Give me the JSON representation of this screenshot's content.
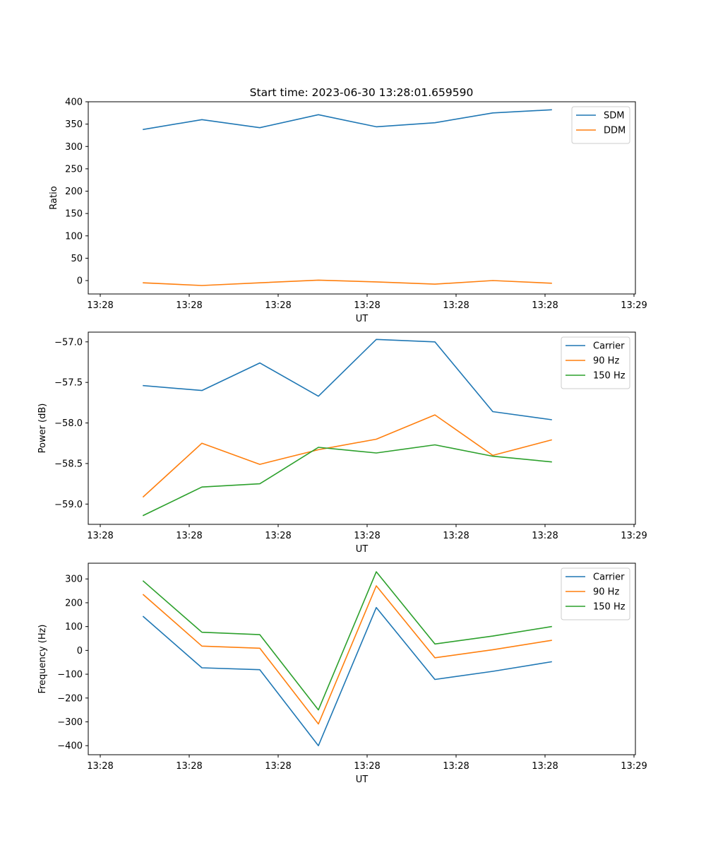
{
  "figure": {
    "title": "Start time: 2023-06-30 13:28:01.659590"
  },
  "colors": {
    "blue": "#1f77b4",
    "orange": "#ff7f0e",
    "green": "#2ca02c"
  },
  "chart_data": [
    {
      "type": "line",
      "title": "Start time: 2023-06-30 13:28:01.659590",
      "xlabel": "UT",
      "ylabel": "Ratio",
      "x_tick_labels": [
        "13:28",
        "13:28",
        "13:28",
        "13:28",
        "13:28",
        "13:28",
        "13:29"
      ],
      "x_points": 8,
      "ylim": [
        -30,
        400
      ],
      "y_ticks": [
        0,
        50,
        100,
        150,
        200,
        250,
        300,
        350,
        400
      ],
      "y_tick_labels": [
        "0",
        "50",
        "100",
        "150",
        "200",
        "250",
        "300",
        "350",
        "400"
      ],
      "legend": "top-right",
      "series": [
        {
          "name": "SDM",
          "color": "#1f77b4",
          "values": [
            338,
            360,
            342,
            371,
            344,
            353,
            375,
            382
          ]
        },
        {
          "name": "DDM",
          "color": "#ff7f0e",
          "values": [
            -5,
            -11,
            -5,
            1,
            -3,
            -8,
            0,
            -6
          ]
        }
      ]
    },
    {
      "type": "line",
      "xlabel": "UT",
      "ylabel": "Power (dB)",
      "x_tick_labels": [
        "13:28",
        "13:28",
        "13:28",
        "13:28",
        "13:28",
        "13:28",
        "13:29"
      ],
      "x_points": 8,
      "ylim": [
        -59.25,
        -56.88
      ],
      "y_ticks": [
        -59.0,
        -58.5,
        -58.0,
        -57.5,
        -57.0
      ],
      "y_tick_labels": [
        "−59.0",
        "−58.5",
        "−58.0",
        "−57.5",
        "−57.0"
      ],
      "legend": "top-right",
      "series": [
        {
          "name": "Carrier",
          "color": "#1f77b4",
          "values": [
            -57.54,
            -57.6,
            -57.26,
            -57.67,
            -56.97,
            -57.0,
            -57.86,
            -57.96
          ]
        },
        {
          "name": "90 Hz",
          "color": "#ff7f0e",
          "values": [
            -58.91,
            -58.25,
            -58.51,
            -58.33,
            -58.2,
            -57.9,
            -58.4,
            -58.21
          ]
        },
        {
          "name": "150 Hz",
          "color": "#2ca02c",
          "values": [
            -59.14,
            -58.79,
            -58.75,
            -58.3,
            -58.37,
            -58.27,
            -58.41,
            -58.48
          ]
        }
      ]
    },
    {
      "type": "line",
      "xlabel": "UT",
      "ylabel": "Frequency (Hz)",
      "x_tick_labels": [
        "13:28",
        "13:28",
        "13:28",
        "13:28",
        "13:28",
        "13:28",
        "13:29"
      ],
      "x_points": 8,
      "ylim": [
        -438,
        366
      ],
      "y_ticks": [
        -400,
        -300,
        -200,
        -100,
        0,
        100,
        200,
        300
      ],
      "y_tick_labels": [
        "−400",
        "−300",
        "−200",
        "−100",
        "0",
        "100",
        "200",
        "300"
      ],
      "legend": "top-right",
      "series": [
        {
          "name": "Carrier",
          "color": "#1f77b4",
          "values": [
            142,
            -73,
            -81,
            -400,
            180,
            -122,
            -88,
            -48
          ]
        },
        {
          "name": "90 Hz",
          "color": "#ff7f0e",
          "values": [
            234,
            18,
            9,
            -309,
            271,
            -31,
            3,
            42
          ]
        },
        {
          "name": "150 Hz",
          "color": "#2ca02c",
          "values": [
            291,
            76,
            66,
            -250,
            330,
            27,
            60,
            100
          ]
        }
      ]
    }
  ]
}
